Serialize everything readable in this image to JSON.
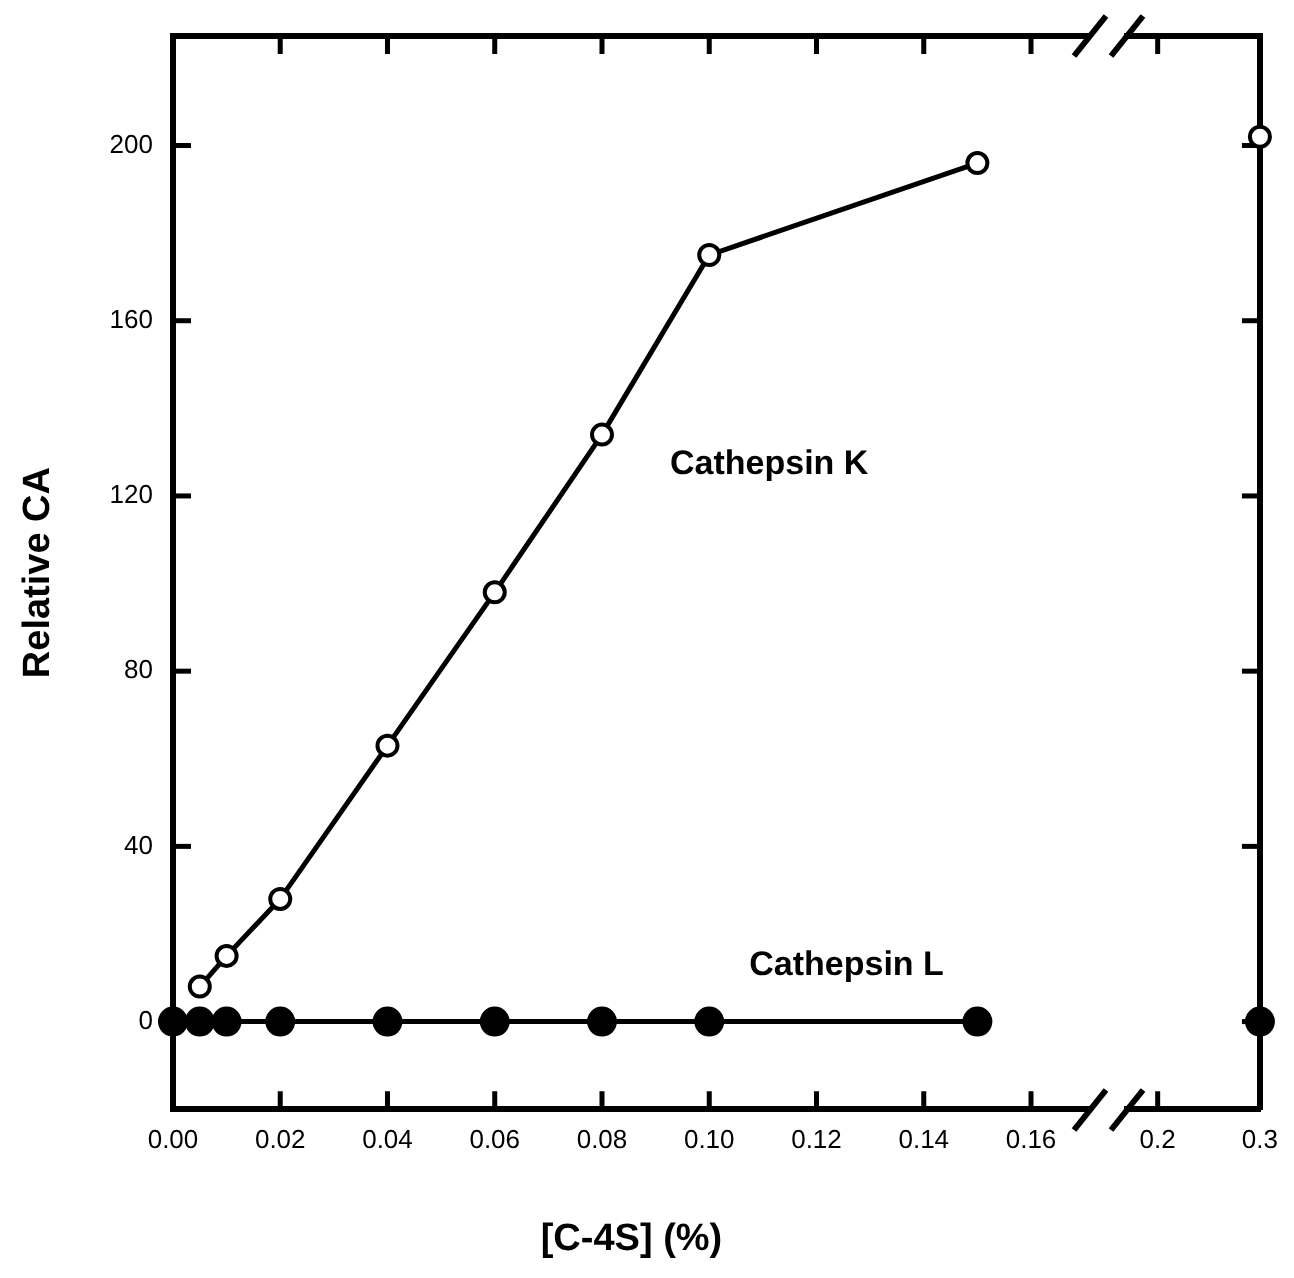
{
  "chart_data": [
    {
      "type": "line",
      "xlabel": "[C-4S] (%)",
      "ylabel": "Relative CA",
      "xlim": [
        0,
        0.171
      ],
      "xticks": [
        {
          "value": 0,
          "label": "0.00"
        },
        0.02,
        0.04,
        0.06,
        0.08,
        {
          "value": 0.1,
          "label": "0.10"
        },
        0.12,
        0.14,
        0.16
      ],
      "ylim": [
        -20,
        225
      ],
      "yticks": [
        0,
        40,
        80,
        120,
        160,
        200
      ],
      "series": [
        {
          "name": "Cathepsin K",
          "color": "#000000",
          "x": [
            0.005,
            0.01,
            0.02,
            0.04,
            0.06,
            0.08,
            0.1,
            0.15
          ],
          "values": [
            8,
            15,
            28,
            63,
            98,
            134,
            175,
            196
          ]
        },
        {
          "name": "Cathepsin L",
          "color": "#000000",
          "x": [
            0,
            0.005,
            0.01,
            0.02,
            0.04,
            0.06,
            0.08,
            0.1,
            0.15
          ],
          "values": [
            0,
            0,
            0,
            0,
            0,
            0,
            0,
            0,
            0
          ]
        }
      ],
      "marker": "circle",
      "line_style": "solid",
      "grid": false,
      "legend": false
    },
    {
      "type": "line",
      "xlim": [
        0.17,
        0.3
      ],
      "xticks": [
        0.2,
        0.3
      ],
      "ylim": [
        -20,
        225
      ],
      "yticks": [
        0,
        40,
        80,
        120,
        160,
        200
      ],
      "tick_labels": "x",
      "series": [
        {
          "color": "#000000",
          "x": [
            0.3
          ],
          "values": [
            202
          ]
        },
        {
          "color": "#000000",
          "x": [
            0.3
          ],
          "values": [
            0
          ]
        }
      ],
      "marker": "circle",
      "line_style": "solid",
      "grid": false,
      "legend": false
    }
  ]
}
